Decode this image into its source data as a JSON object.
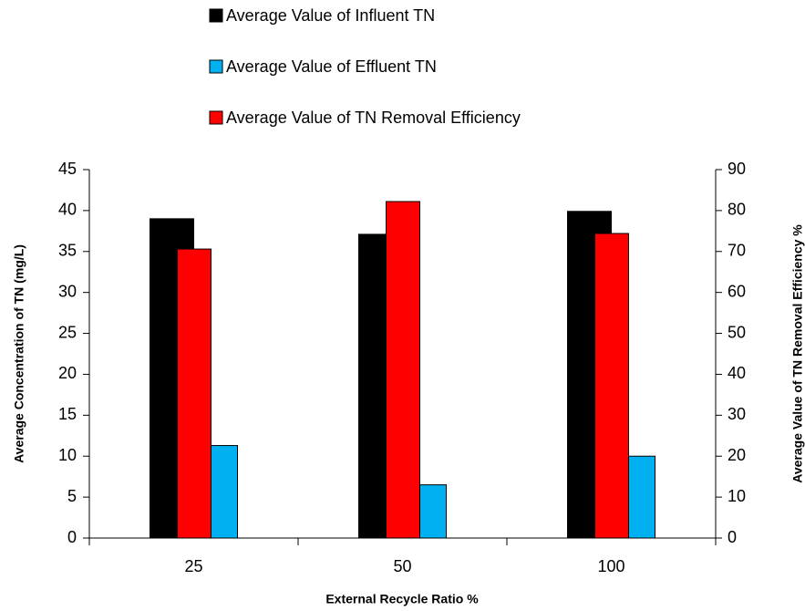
{
  "chart_data": {
    "type": "bar",
    "categories": [
      "25",
      "50",
      "100"
    ],
    "x_label": "External Recycle Ratio %",
    "y_label": "Average Concentration of TN (mg/L)",
    "y2_label": "Average Value of TN Removal Efficiency %",
    "series": [
      {
        "name": "Average Value of Influent TN",
        "color": "#000000",
        "values": [
          39,
          37.1,
          39.9
        ]
      },
      {
        "name": "Average Value of Effluent TN",
        "color": "#00b0f0",
        "values": [
          11.3,
          6.5,
          10
        ]
      },
      {
        "name": "Average Value of TN Removal Efficiency",
        "color": "#ff0000",
        "axis": "y2",
        "values": [
          70.6,
          82.2,
          74.4
        ]
      }
    ],
    "ylim": [
      0,
      45
    ],
    "yticks": [
      0,
      5,
      10,
      15,
      20,
      25,
      30,
      35,
      40,
      45
    ],
    "y2lim": [
      0,
      90
    ],
    "y2ticks": [
      0,
      10,
      20,
      30,
      40,
      50,
      60,
      70,
      80,
      90
    ],
    "grid": false,
    "legend": "top"
  }
}
